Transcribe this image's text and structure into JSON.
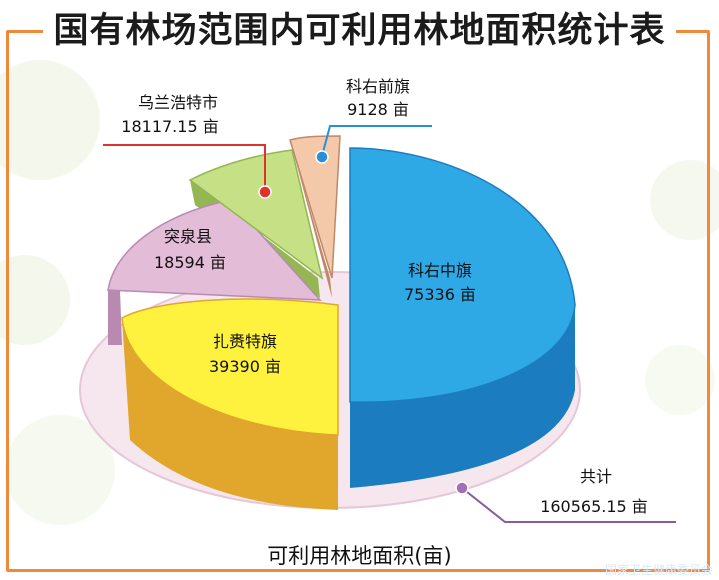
{
  "chart_data": {
    "type": "pie",
    "title": "国有林场范围内可利用林地面积统计表",
    "footer_label": "可利用林地面积(亩)",
    "unit": "亩",
    "slices": [
      {
        "name": "科右中旗",
        "value": 75336,
        "value_label": "75336 亩",
        "color": "#2fa8e6"
      },
      {
        "name": "扎赉特旗",
        "value": 39390,
        "value_label": "39390 亩",
        "color": "#fff23e"
      },
      {
        "name": "突泉县",
        "value": 18594,
        "value_label": "18594 亩",
        "color": "#e3bcd8"
      },
      {
        "name": "乌兰浩特市",
        "value": 18117.15,
        "value_label": "18117.15 亩",
        "color": "#c5e085"
      },
      {
        "name": "科右前旗",
        "value": 9128,
        "value_label": "9128 亩",
        "color": "#f3c9a9"
      }
    ],
    "total": {
      "name": "共计",
      "value": 160565.15,
      "value_label": "160565.15 亩"
    }
  },
  "watermark": "国家卫生健康委员会"
}
